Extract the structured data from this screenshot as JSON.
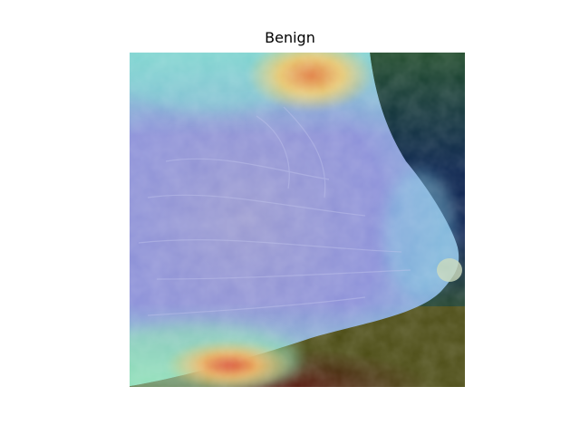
{
  "figure": {
    "title": "Benign"
  },
  "image": {
    "subject": "mammogram-heatmap-overlay",
    "colors": {
      "tissue_overlay": "#8a8fd8",
      "hot_spot": "#e05a2a",
      "warm": "#e8d070",
      "cool_edge": "#7fd6d0",
      "background_dark_blue": "#061a4a",
      "background_dark_green": "#1f4a2a",
      "background_olive": "#4a4a10",
      "background_dark_red": "#4a0a0a"
    }
  }
}
